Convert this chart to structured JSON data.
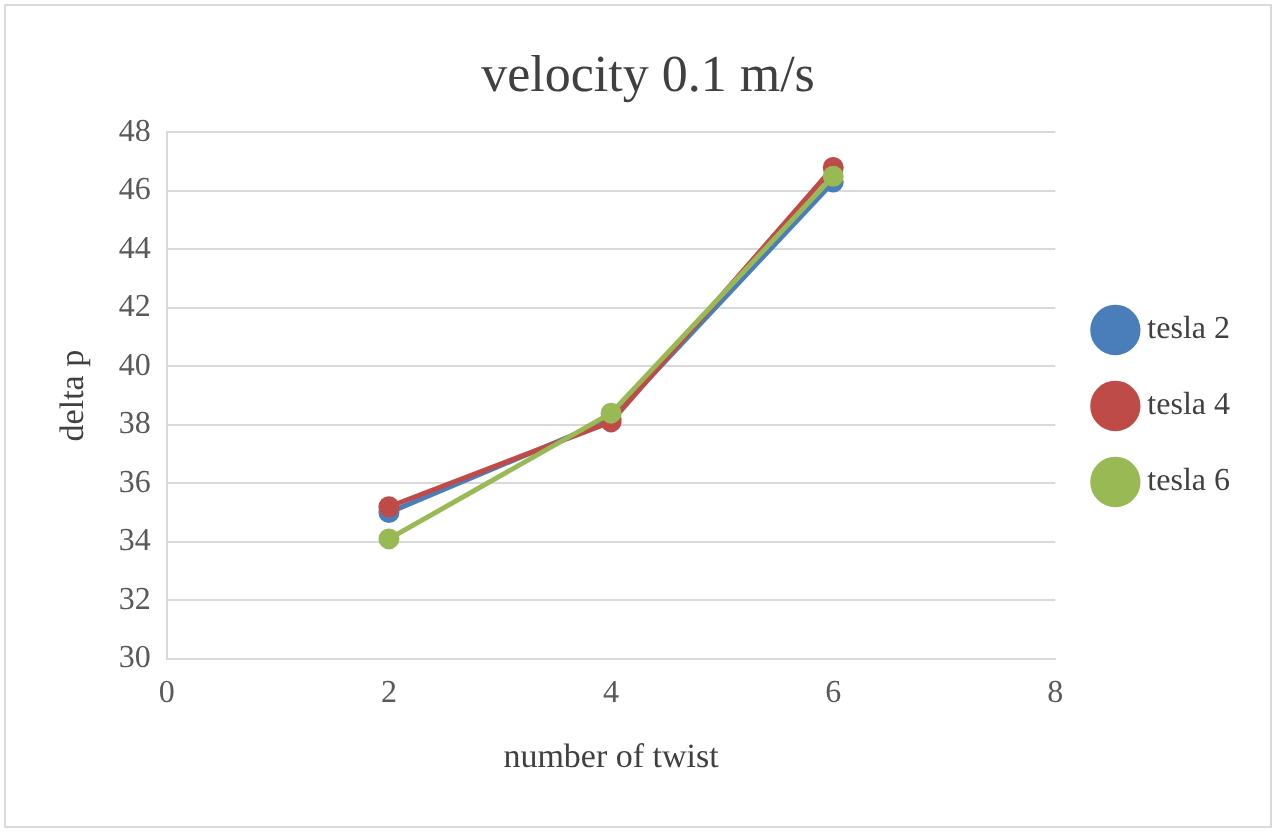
{
  "chart_data": {
    "type": "line",
    "title": "velocity 0.1 m/s",
    "xlabel": "number of twist",
    "ylabel": "delta p",
    "xlim": [
      0,
      8
    ],
    "xticks": [
      0,
      2,
      4,
      6,
      8
    ],
    "ylim": [
      30,
      48
    ],
    "yticks": [
      30,
      32,
      34,
      36,
      38,
      40,
      42,
      44,
      46,
      48
    ],
    "grid": "y",
    "legend": "right",
    "marker": "circle",
    "line_style": "solid",
    "x": [
      2,
      4,
      6
    ],
    "series": [
      {
        "name": "tesla 2",
        "color": "#4a7ebb",
        "values": [
          35.0,
          38.2,
          46.3
        ]
      },
      {
        "name": "tesla 4",
        "color": "#be4b48",
        "values": [
          35.2,
          38.1,
          46.8
        ]
      },
      {
        "name": "tesla 6",
        "color": "#98b954",
        "values": [
          34.1,
          38.4,
          46.5
        ]
      }
    ]
  }
}
